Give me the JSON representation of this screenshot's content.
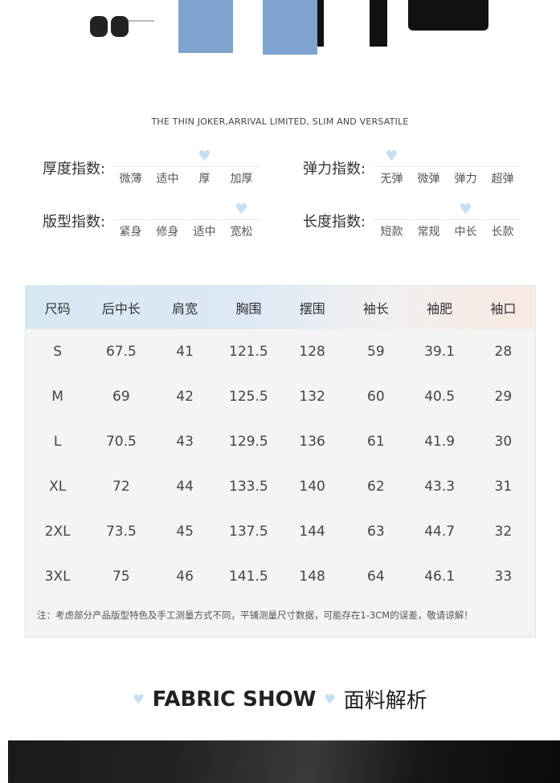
{
  "tagline": "THE THIN JOKER,ARRIVAL LIMITED, SLIM AND VERSATILE",
  "indices": [
    {
      "label": "厚度指数:",
      "options": [
        "微薄",
        "适中",
        "厚",
        "加厚"
      ],
      "selected": 2
    },
    {
      "label": "弹力指数:",
      "options": [
        "无弹",
        "微弹",
        "弹力",
        "超弹"
      ],
      "selected": 0
    },
    {
      "label": "版型指数:",
      "options": [
        "紧身",
        "修身",
        "适中",
        "宽松"
      ],
      "selected": 3
    },
    {
      "label": "长度指数:",
      "options": [
        "短款",
        "常规",
        "中长",
        "长款"
      ],
      "selected": 2
    }
  ],
  "size_table": {
    "headers": [
      "尺码",
      "后中长",
      "肩宽",
      "胸围",
      "摆围",
      "袖长",
      "袖肥",
      "袖口"
    ],
    "rows": [
      [
        "S",
        "67.5",
        "41",
        "121.5",
        "128",
        "59",
        "39.1",
        "28"
      ],
      [
        "M",
        "69",
        "42",
        "125.5",
        "132",
        "60",
        "40.5",
        "29"
      ],
      [
        "L",
        "70.5",
        "43",
        "129.5",
        "136",
        "61",
        "41.9",
        "30"
      ],
      [
        "XL",
        "72",
        "44",
        "133.5",
        "140",
        "62",
        "43.3",
        "31"
      ],
      [
        "2XL",
        "73.5",
        "45",
        "137.5",
        "144",
        "63",
        "44.7",
        "32"
      ],
      [
        "3XL",
        "75",
        "46",
        "141.5",
        "148",
        "64",
        "46.1",
        "33"
      ]
    ],
    "note": "注：考虑部分产品版型特色及手工测量方式不同，平铺测量尺寸数据，可能存在1-3CM的误差，敬请谅解！"
  },
  "fabric": {
    "en": "FABRIC SHOW",
    "cn": "面料解析"
  },
  "colors": {
    "heart": "#c5def0",
    "header_left": "#d6e7f4",
    "header_right": "#f8e9e2"
  }
}
